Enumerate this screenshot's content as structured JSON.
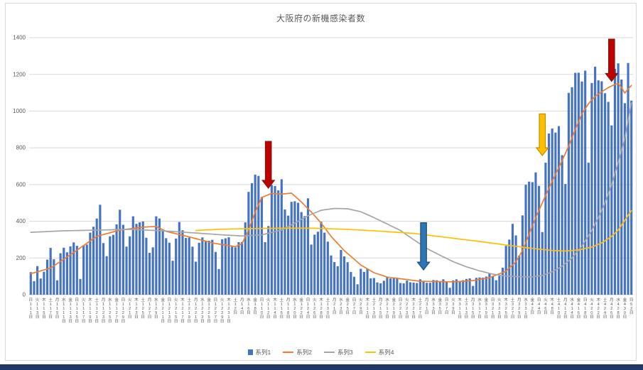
{
  "title": "大阪府の新機感染者数",
  "window": {
    "bottom_strip_color": "#1F3864",
    "frame_border_color": "#D9D9D9"
  },
  "legend": [
    {
      "label": "系列1",
      "color": "#4472C4",
      "marker": "bar"
    },
    {
      "label": "系列2",
      "color": "#ED7D31",
      "marker": "line"
    },
    {
      "label": "系列3",
      "color": "#A5A5A5",
      "marker": "line"
    },
    {
      "label": "系列4",
      "color": "#FFC000",
      "marker": "line"
    }
  ],
  "chart_data": {
    "type": "bar",
    "subtype": "combo-bar-and-lines",
    "title": "大阪府の新機感染者数",
    "ylim": [
      0,
      1400
    ],
    "ytick_interval": 200,
    "grid": true,
    "legend_position": "bottom",
    "axis_color": "#595959",
    "gridline_color": "#D9D9D9",
    "x_axis": {
      "unit": "day",
      "label_every": 2,
      "day_suffix": "日",
      "weekday_cycle": [
        "日",
        "月",
        "火",
        "水",
        "木",
        "金",
        "土"
      ],
      "start_weekday_index": 0,
      "months": [
        {
          "label": "11",
          "days": 30
        },
        {
          "label": "12",
          "days": 31
        },
        {
          "label": "1",
          "days": 31
        },
        {
          "label": "2",
          "days": 28
        },
        {
          "label": "3",
          "days": 31
        },
        {
          "label": "4",
          "days": 30
        },
        {
          "label": "5",
          "days": 31
        }
      ]
    },
    "series": [
      {
        "name": "系列1",
        "type": "bar",
        "color": "#4472C4",
        "values": [
          123,
          74,
          156,
          88,
          125,
          191,
          255,
          193,
          78,
          226,
          256,
          231,
          263,
          285,
          266,
          86,
          269,
          273,
          338,
          370,
          415,
          490,
          281,
          210,
          318,
          326,
          383,
          463,
          381,
          262,
          318,
          427,
          386,
          394,
          399,
          310,
          228,
          258,
          427,
          415,
          357,
          308,
          283,
          185,
          306,
          396,
          351,
          309,
          311,
          262,
          180,
          283,
          312,
          289,
          294,
          299,
          233,
          140,
          302,
          307,
          313,
          262,
          258,
          286,
          287,
          394,
          560,
          607,
          654,
          647,
          532,
          286,
          374,
          598,
          592,
          568,
          629,
          464,
          431,
          506,
          509,
          501,
          450,
          428,
          525,
          273,
          327,
          343,
          397,
          338,
          289,
          214,
          178,
          155,
          244,
          209,
          177,
          124,
          98,
          57,
          141,
          124,
          141,
          89,
          91,
          67,
          62,
          76,
          97,
          89,
          91,
          88,
          64,
          62,
          77,
          68,
          66,
          64,
          84,
          76,
          65,
          65,
          80,
          79,
          71,
          84,
          71,
          38,
          78,
          84,
          74,
          79,
          86,
          89,
          48,
          92,
          94,
          93,
          99,
          115,
          100,
          79,
          103,
          147,
          266,
          300,
          386,
          323,
          213,
          432,
          599,
          616,
          613,
          666,
          593,
          341,
          719,
          878,
          905,
          883,
          918,
          760,
          603,
          1099,
          1130,
          1208,
          1209,
          1161,
          1220,
          719,
          1153,
          1242,
          1167,
          1162,
          1097,
          1050,
          922,
          1230,
          1260,
          1172,
          1043,
          1262,
          1057
        ]
      },
      {
        "name": "系列2",
        "type": "line",
        "color": "#ED7D31",
        "anchors": [
          [
            0,
            115
          ],
          [
            6,
            145
          ],
          [
            13,
            230
          ],
          [
            20,
            318
          ],
          [
            27,
            352
          ],
          [
            34,
            368
          ],
          [
            38,
            372
          ],
          [
            41,
            345
          ],
          [
            48,
            315
          ],
          [
            55,
            282
          ],
          [
            62,
            262
          ],
          [
            64,
            278
          ],
          [
            66,
            352
          ],
          [
            68,
            450
          ],
          [
            70,
            530
          ],
          [
            73,
            552
          ],
          [
            76,
            548
          ],
          [
            79,
            553
          ],
          [
            82,
            505
          ],
          [
            85,
            450
          ],
          [
            88,
            390
          ],
          [
            91,
            318
          ],
          [
            95,
            240
          ],
          [
            100,
            162
          ],
          [
            104,
            120
          ],
          [
            108,
            96
          ],
          [
            113,
            85
          ],
          [
            118,
            73
          ],
          [
            123,
            72
          ],
          [
            128,
            70
          ],
          [
            134,
            77
          ],
          [
            139,
            93
          ],
          [
            144,
            128
          ],
          [
            147,
            180
          ],
          [
            149,
            240
          ],
          [
            151,
            330
          ],
          [
            153,
            420
          ],
          [
            155,
            500
          ],
          [
            157,
            580
          ],
          [
            159,
            655
          ],
          [
            161,
            730
          ],
          [
            163,
            810
          ],
          [
            165,
            900
          ],
          [
            167,
            985
          ],
          [
            169,
            1040
          ],
          [
            171,
            1080
          ],
          [
            173,
            1105
          ],
          [
            175,
            1128
          ],
          [
            177,
            1145
          ],
          [
            178,
            1150
          ],
          [
            179,
            1128
          ],
          [
            180,
            1098
          ],
          [
            181,
            1120
          ],
          [
            182,
            1140
          ]
        ]
      },
      {
        "name": "系列3",
        "type": "line",
        "color": "#A5A5A5",
        "anchors": [
          [
            0,
            340
          ],
          [
            10,
            348
          ],
          [
            20,
            352
          ],
          [
            30,
            356
          ],
          [
            40,
            348
          ],
          [
            50,
            336
          ],
          [
            58,
            326
          ],
          [
            64,
            320
          ],
          [
            70,
            326
          ],
          [
            76,
            352
          ],
          [
            80,
            390
          ],
          [
            84,
            430
          ],
          [
            88,
            460
          ],
          [
            92,
            470
          ],
          [
            96,
            468
          ],
          [
            100,
            452
          ],
          [
            104,
            420
          ],
          [
            108,
            385
          ],
          [
            112,
            350
          ],
          [
            116,
            300
          ],
          [
            120,
            252
          ],
          [
            124,
            215
          ],
          [
            128,
            180
          ],
          [
            132,
            152
          ],
          [
            136,
            130
          ],
          [
            140,
            112
          ],
          [
            144,
            102
          ],
          [
            148,
            98
          ],
          [
            152,
            97
          ],
          [
            155,
            105
          ],
          [
            158,
            125
          ],
          [
            161,
            155
          ],
          [
            164,
            200
          ],
          [
            167,
            265
          ],
          [
            170,
            350
          ],
          [
            172,
            420
          ],
          [
            174,
            500
          ],
          [
            176,
            600
          ],
          [
            178,
            720
          ],
          [
            180,
            850
          ],
          [
            181,
            950
          ],
          [
            182,
            1045
          ]
        ]
      },
      {
        "name": "系列4",
        "type": "line",
        "color": "#FFC000",
        "anchors": [
          [
            50,
            350
          ],
          [
            58,
            357
          ],
          [
            66,
            360
          ],
          [
            76,
            362
          ],
          [
            86,
            362
          ],
          [
            96,
            356
          ],
          [
            106,
            346
          ],
          [
            116,
            334
          ],
          [
            126,
            312
          ],
          [
            136,
            290
          ],
          [
            146,
            266
          ],
          [
            152,
            252
          ],
          [
            158,
            241
          ],
          [
            162,
            238
          ],
          [
            166,
            244
          ],
          [
            170,
            260
          ],
          [
            173,
            282
          ],
          [
            176,
            318
          ],
          [
            178,
            352
          ],
          [
            180,
            405
          ],
          [
            182,
            458
          ]
        ]
      }
    ],
    "annotations": [
      {
        "shape": "down-arrow",
        "label": "red-arrow-january-peak",
        "x_index": 72,
        "from_value": 835,
        "to_value": 580,
        "fill": "#C00000",
        "stroke": "#7F1B10"
      },
      {
        "shape": "down-arrow",
        "label": "blue-arrow-march-trough",
        "x_index": 119,
        "from_value": 392,
        "to_value": 135,
        "fill": "#2E75B6",
        "stroke": "#1F4E79"
      },
      {
        "shape": "down-arrow",
        "label": "yellow-arrow-early-april",
        "x_index": 155,
        "from_value": 985,
        "to_value": 758,
        "fill": "#FFC000",
        "stroke": "#BF8F00"
      },
      {
        "shape": "down-arrow",
        "label": "red-arrow-late-april",
        "x_index": 176,
        "from_value": 1392,
        "to_value": 1162,
        "fill": "#C00000",
        "stroke": "#7F1B10"
      }
    ]
  }
}
